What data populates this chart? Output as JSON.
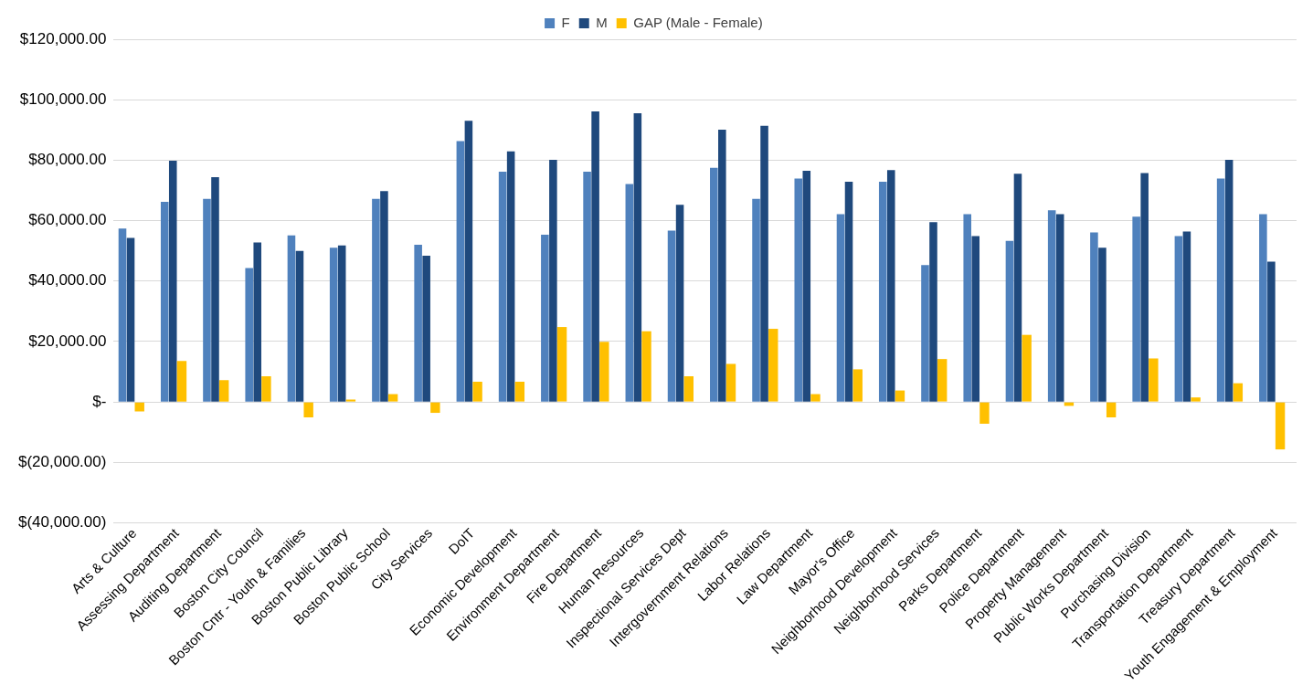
{
  "chart_data": {
    "type": "bar",
    "categories": [
      "Arts & Culture",
      "Assessing Department",
      "Auditing Department",
      "Boston City Council",
      "Boston Cntr - Youth & Families",
      "Boston Public Library",
      "Boston Public School",
      "City Services",
      "DoIT",
      "Economic Development",
      "Environment Department",
      "Fire Department",
      "Human Resources",
      "Inspectional Services Dept",
      "Intergovernment Relations",
      "Labor Relations",
      "Law Department",
      "Mayor's Office",
      "Neighborhood Development",
      "Neighborhood Services",
      "Parks Department",
      "Police Department",
      "Property Management",
      "Public Works Department",
      "Purchasing Division",
      "Transportation Department",
      "Treasury Department",
      "Youth Engagement & Employment"
    ],
    "series": [
      {
        "name": "F",
        "color": "#4f81bd",
        "values": [
          57400,
          66200,
          67200,
          44300,
          55100,
          51000,
          67200,
          52000,
          86300,
          76200,
          55300,
          76200,
          72100,
          56700,
          77500,
          67200,
          73900,
          62100,
          72900,
          45300,
          62100,
          53300,
          63400,
          56100,
          61300,
          54900,
          73900,
          62100
        ]
      },
      {
        "name": "M",
        "color": "#1f497d",
        "values": [
          54300,
          79800,
          74400,
          52800,
          50000,
          51800,
          69800,
          48400,
          93000,
          82900,
          80100,
          96100,
          95500,
          65200,
          90100,
          91400,
          76500,
          72900,
          76700,
          59500,
          54900,
          75500,
          62100,
          51000,
          75700,
          56400,
          80100,
          46400
        ]
      },
      {
        "name": "GAP (Male - Female)",
        "color": "#ffc000",
        "type": "bar",
        "values": [
          -3100,
          13600,
          7200,
          8500,
          -5100,
          800,
          2600,
          -3600,
          6700,
          6700,
          24800,
          19900,
          23400,
          8500,
          12600,
          24200,
          2600,
          10800,
          3800,
          14200,
          -7200,
          22200,
          -1300,
          -5100,
          14400,
          1500,
          6200,
          -15700
        ]
      }
    ],
    "ylim": [
      -40000,
      120000
    ],
    "yticks": [
      {
        "value": -40000,
        "label": "$(40,000.00)"
      },
      {
        "value": -20000,
        "label": "$(20,000.00)"
      },
      {
        "value": 0,
        "label": "$-"
      },
      {
        "value": 20000,
        "label": "$20,000.00"
      },
      {
        "value": 40000,
        "label": "$40,000.00"
      },
      {
        "value": 60000,
        "label": "$60,000.00"
      },
      {
        "value": 80000,
        "label": "$80,000.00"
      },
      {
        "value": 100000,
        "label": "$100,000.00"
      },
      {
        "value": 120000,
        "label": "$120,000.00"
      }
    ],
    "grid": "y",
    "legend": "top"
  }
}
